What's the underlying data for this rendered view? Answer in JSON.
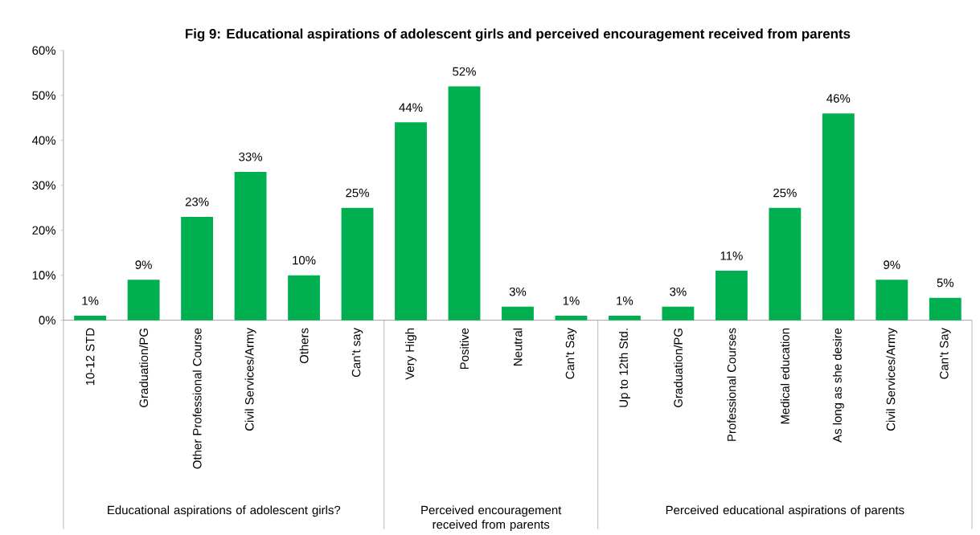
{
  "chart_data": {
    "type": "bar",
    "title": "Fig 9: Educational aspirations of adolescent girls and perceived encouragement received from parents",
    "categories": [
      "10-12 STD",
      "Graduation/PG",
      "Other Professional Course",
      "Civil Services/Army",
      "Others",
      "Can't say",
      "Very High",
      "Positive",
      "Neutral",
      "Can't Say",
      "Up to 12th Std.",
      "Graduation/PG",
      "Professional Courses",
      "Medical education",
      "As long as she desire",
      "Civil Services/Army",
      "Can't Say"
    ],
    "values": [
      1,
      9,
      23,
      33,
      10,
      25,
      44,
      52,
      3,
      1,
      1,
      3,
      11,
      25,
      46,
      9,
      5
    ],
    "value_labels": [
      "1%",
      "9%",
      "23%",
      "33%",
      "10%",
      "25%",
      "44%",
      "52%",
      "3%",
      "1%",
      "1%",
      "3%",
      "11%",
      "25%",
      "46%",
      "9%",
      "5%"
    ],
    "color": "#00b050",
    "ylim": [
      0,
      60
    ],
    "yticks": [
      {
        "value": 0,
        "label": "0%"
      },
      {
        "value": 10,
        "label": "10%"
      },
      {
        "value": 20,
        "label": "20%"
      },
      {
        "value": 30,
        "label": "30%"
      },
      {
        "value": 40,
        "label": "40%"
      },
      {
        "value": 50,
        "label": "50%"
      },
      {
        "value": 60,
        "label": "60%"
      }
    ],
    "annotations": [
      "Educational aspirations of adolescent girls?",
      "Perceived encouragement received from parents",
      "Perceived educational aspirations of parents"
    ],
    "grid": false
  }
}
